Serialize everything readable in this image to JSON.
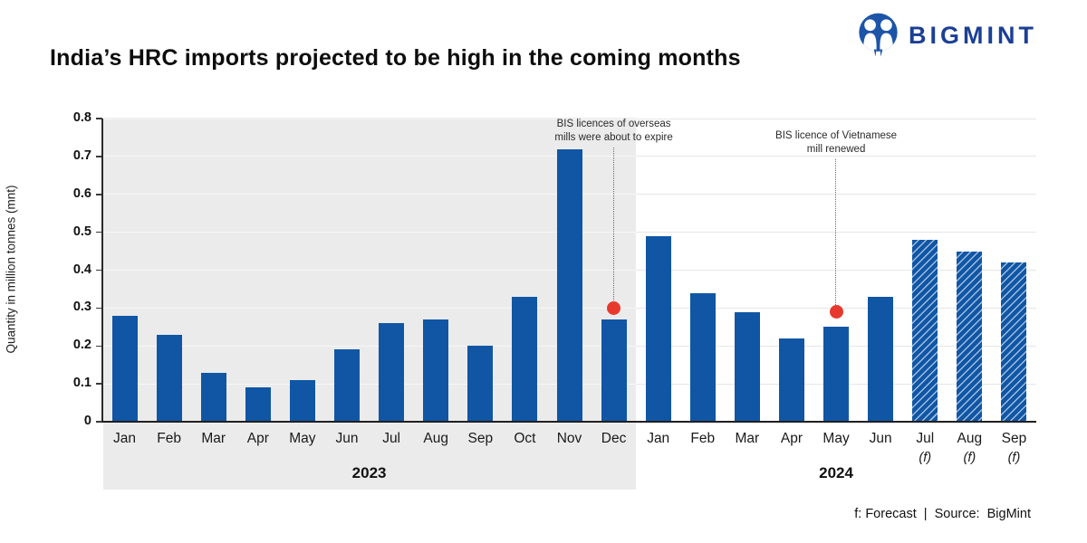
{
  "header": {
    "title": "India’s HRC imports projected to be high in the coming months",
    "brand": "BIGMINT"
  },
  "footer": {
    "text": "f: Forecast  |  Source:  BigMint"
  },
  "chart_data": {
    "type": "bar",
    "title": "India’s HRC imports projected to be high in the coming months",
    "xlabel": "",
    "ylabel": "Quantity in million tonnes (mnt)",
    "ylim": [
      0,
      0.8
    ],
    "yticks": [
      0,
      0.1,
      0.2,
      0.3,
      0.4,
      0.5,
      0.6,
      0.7,
      0.8
    ],
    "grid": true,
    "forecast_suffix": "(f)",
    "year_labels": [
      "2023",
      "2024"
    ],
    "points": [
      {
        "month": "Jan",
        "year": 2023,
        "value": 0.28,
        "forecast": false
      },
      {
        "month": "Feb",
        "year": 2023,
        "value": 0.23,
        "forecast": false
      },
      {
        "month": "Mar",
        "year": 2023,
        "value": 0.13,
        "forecast": false
      },
      {
        "month": "Apr",
        "year": 2023,
        "value": 0.09,
        "forecast": false
      },
      {
        "month": "May",
        "year": 2023,
        "value": 0.11,
        "forecast": false
      },
      {
        "month": "Jun",
        "year": 2023,
        "value": 0.19,
        "forecast": false
      },
      {
        "month": "Jul",
        "year": 2023,
        "value": 0.26,
        "forecast": false
      },
      {
        "month": "Aug",
        "year": 2023,
        "value": 0.27,
        "forecast": false
      },
      {
        "month": "Sep",
        "year": 2023,
        "value": 0.2,
        "forecast": false
      },
      {
        "month": "Oct",
        "year": 2023,
        "value": 0.33,
        "forecast": false
      },
      {
        "month": "Nov",
        "year": 2023,
        "value": 0.72,
        "forecast": false
      },
      {
        "month": "Dec",
        "year": 2023,
        "value": 0.27,
        "forecast": false
      },
      {
        "month": "Jan",
        "year": 2024,
        "value": 0.49,
        "forecast": false
      },
      {
        "month": "Feb",
        "year": 2024,
        "value": 0.34,
        "forecast": false
      },
      {
        "month": "Mar",
        "year": 2024,
        "value": 0.29,
        "forecast": false
      },
      {
        "month": "Apr",
        "year": 2024,
        "value": 0.22,
        "forecast": false
      },
      {
        "month": "May",
        "year": 2024,
        "value": 0.25,
        "forecast": false
      },
      {
        "month": "Jun",
        "year": 2024,
        "value": 0.33,
        "forecast": false
      },
      {
        "month": "Jul",
        "year": 2024,
        "value": 0.48,
        "forecast": true
      },
      {
        "month": "Aug",
        "year": 2024,
        "value": 0.45,
        "forecast": true
      },
      {
        "month": "Sep",
        "year": 2024,
        "value": 0.42,
        "forecast": true
      }
    ],
    "annotations": [
      {
        "text_lines": [
          "BIS licences of overseas",
          "mills were about to expire"
        ],
        "month_index": 11,
        "dot_value": 0.3
      },
      {
        "text_lines": [
          "BIS licence of Vietnamese",
          "mill renewed"
        ],
        "month_index": 16,
        "dot_value": 0.29
      }
    ],
    "colors": {
      "bar": "#1056A4",
      "hatch_line": "#9FBEE0",
      "dot": "#E8392E",
      "gray_bg": "#EBEBEB",
      "grid_on_gray": "#F7F7F7",
      "grid_on_white": "#E6E6E6",
      "brand_blue": "#1B3F94"
    },
    "legend": null
  }
}
